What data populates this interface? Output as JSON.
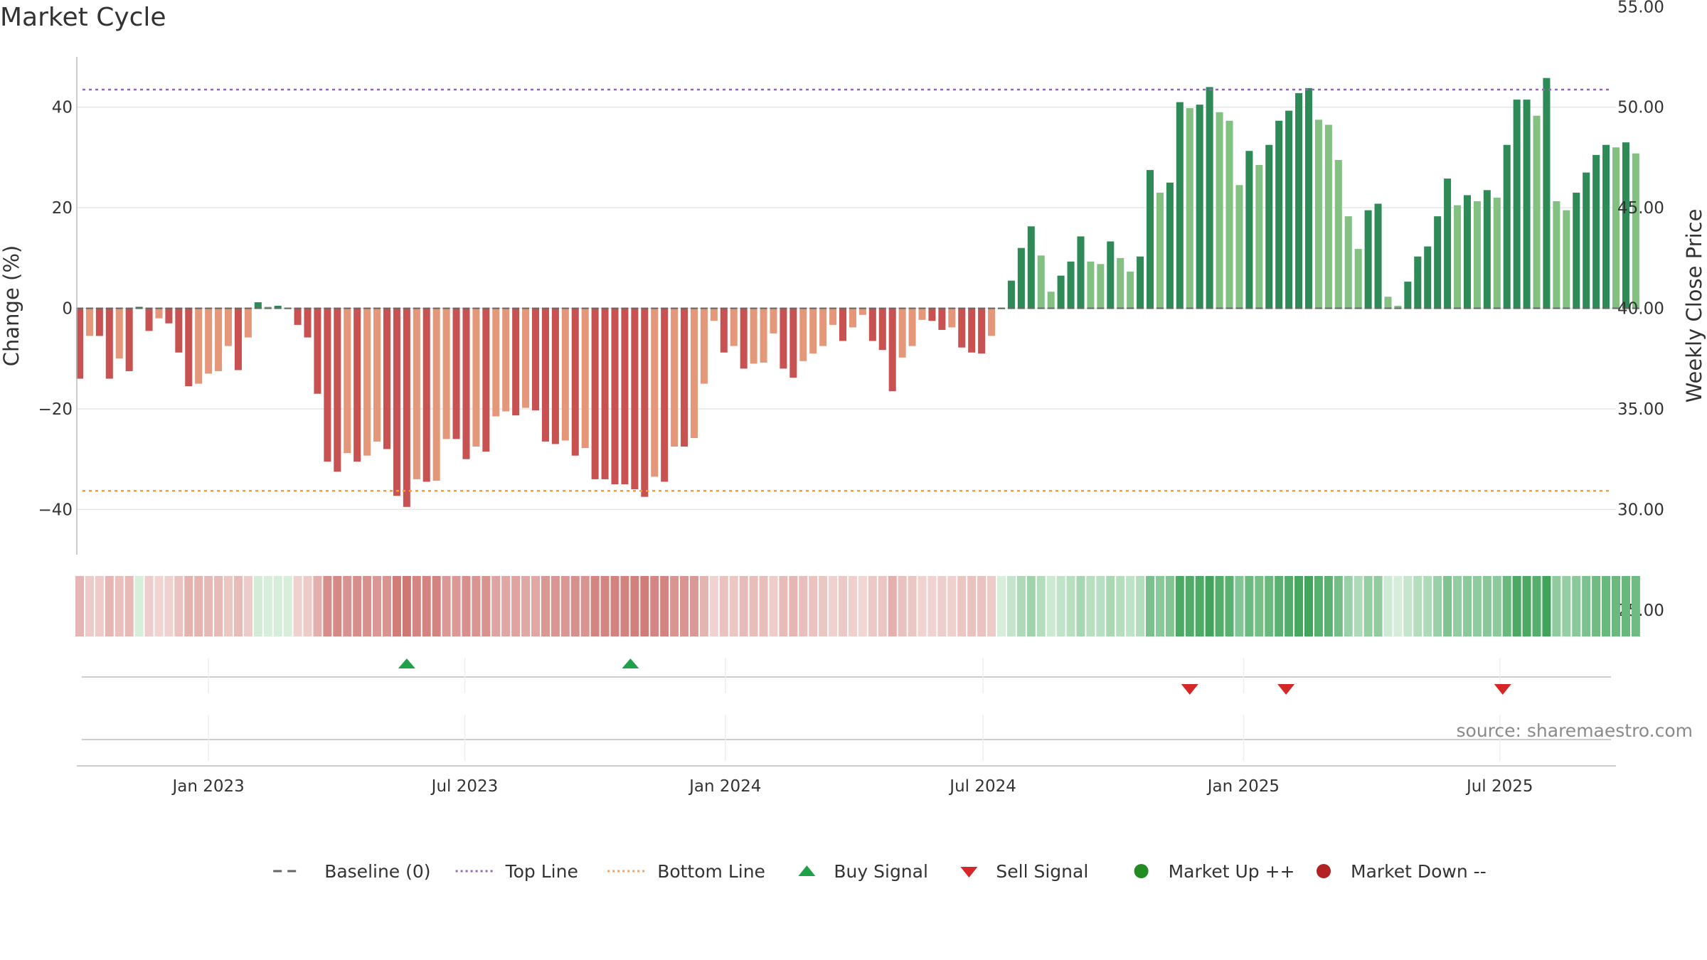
{
  "chart_data": {
    "title": "Market Cycle",
    "type": "bar",
    "x_axis": {
      "ticks": [
        {
          "date": "2023-01-01",
          "label": "Jan 2023"
        },
        {
          "date": "2023-07-01",
          "label": "Jul 2023"
        },
        {
          "date": "2024-01-01",
          "label": "Jan 2024"
        },
        {
          "date": "2024-07-01",
          "label": "Jul 2024"
        },
        {
          "date": "2025-01-01",
          "label": "Jan 2025"
        },
        {
          "date": "2025-07-01",
          "label": "Jul 2025"
        }
      ],
      "range": [
        "2022-09-30",
        "2025-09-21"
      ]
    },
    "y_left": {
      "label": "Change (%)",
      "range": [
        -49,
        50
      ],
      "ticks": [
        -40,
        -20,
        0,
        20,
        40
      ],
      "tick_labels": [
        "−40",
        "−20",
        "0",
        "20",
        "40"
      ]
    },
    "y_right": {
      "label": "Weekly Close Price",
      "ticks": [
        25,
        30,
        35,
        40,
        45,
        50,
        55
      ],
      "tick_labels": [
        "25.00",
        "30.00",
        "35.00",
        "40.00",
        "45.00",
        "50.00",
        "55.00"
      ]
    },
    "reference_lines": [
      {
        "name": "Baseline (0)",
        "value": 0,
        "color": "#666666",
        "style": "dash"
      },
      {
        "name": "Top Line",
        "value": 43.5,
        "color": "#9467bd",
        "style": "dot"
      },
      {
        "name": "Bottom Line",
        "value": -36.3,
        "color": "#ff9933",
        "style": "dot"
      }
    ],
    "series": [
      {
        "name": "Change (%)",
        "start_date": "2022-10-02",
        "interval_days": 7,
        "values": [
          -14,
          -5.5,
          -5.5,
          -14,
          -10,
          -12.5,
          0.3,
          -4.5,
          -2,
          -3,
          -8.8,
          -15.5,
          -15,
          -13,
          -12.5,
          -7.5,
          -12.3,
          -5.8,
          1.2,
          0.3,
          0.5,
          0,
          -3.3,
          -5.8,
          -17,
          -30.5,
          -32.5,
          -28.8,
          -30.5,
          -29.3,
          -26.5,
          -28,
          -37.3,
          -39.5,
          -34,
          -34.5,
          -34.3,
          -26,
          -26,
          -30,
          -27.5,
          -28.5,
          -21.5,
          -20.5,
          -21.3,
          -19.8,
          -20.3,
          -26.5,
          -27,
          -26.3,
          -29.3,
          -27.8,
          -34,
          -34,
          -35,
          -35,
          -36,
          -37.5,
          -33.5,
          -34.5,
          -27.5,
          -27.5,
          -25.8,
          -15,
          -2.5,
          -8.8,
          -7.5,
          -12,
          -11,
          -10.8,
          -5,
          -12,
          -13.8,
          -10.5,
          -9,
          -7.5,
          -3.3,
          -6.5,
          -3.8,
          -1.3,
          -6.5,
          -8.3,
          -16.5,
          -9.8,
          -7.5,
          -2.3,
          -2.5,
          -4.3,
          -3.8,
          -7.8,
          -8.8,
          -9,
          -5.5,
          0,
          5.5,
          12,
          16.3,
          10.5,
          3.3,
          6.5,
          9.3,
          14.3,
          9.3,
          8.8,
          13.3,
          10,
          7.3,
          10.3,
          27.5,
          23,
          25,
          41,
          39.8,
          40.5,
          44,
          39,
          37.3,
          24.5,
          31.3,
          28.5,
          32.5,
          37.3,
          39.3,
          42.8,
          43.8,
          37.5,
          36.5,
          29.5,
          18.3,
          11.8,
          19.5,
          20.8,
          2.3,
          0.5,
          5.3,
          10.3,
          12.3,
          18.3,
          25.8,
          20.5,
          22.5,
          21.3,
          23.5,
          22,
          32.5,
          41.5,
          41.5,
          38.3,
          45.8,
          21.3,
          19.5,
          23,
          27,
          30.5,
          32.5,
          32,
          33,
          30.8
        ]
      }
    ],
    "signals": {
      "buy": [
        {
          "date": "2023-05-21",
          "label": "Buy Signal"
        },
        {
          "date": "2023-10-26",
          "label": "Buy Signal"
        }
      ],
      "sell": [
        {
          "date": "2024-11-24",
          "label": "Sell Signal"
        },
        {
          "date": "2025-01-31",
          "label": "Sell Signal"
        },
        {
          "date": "2025-07-03",
          "label": "Sell Signal"
        }
      ]
    },
    "colors": {
      "up_dark": "#2e8b57",
      "up_light": "#82c182",
      "down_dark": "#c85252",
      "down_light": "#e59779",
      "buy": "#1fa04a",
      "sell": "#d62728",
      "market_up": "#228b22",
      "market_down": "#b22222"
    },
    "legend": {
      "placement": "bottom",
      "items": [
        {
          "label": "Baseline (0)",
          "symbol": "dash",
          "color": "#666666"
        },
        {
          "label": "Top Line",
          "symbol": "dot-line",
          "color": "#9467bd"
        },
        {
          "label": "Bottom Line",
          "symbol": "dot-line",
          "color": "#f0a060"
        },
        {
          "label": "Buy Signal",
          "symbol": "triangle-up",
          "color": "#1fa04a"
        },
        {
          "label": "Sell Signal",
          "symbol": "triangle-down",
          "color": "#d62728"
        },
        {
          "label": "Market Up ++",
          "symbol": "circle",
          "color": "#228b22"
        },
        {
          "label": "Market Down --",
          "symbol": "circle",
          "color": "#b22222"
        }
      ]
    },
    "grid": true
  },
  "source_note": "source: sharemaestro.com"
}
